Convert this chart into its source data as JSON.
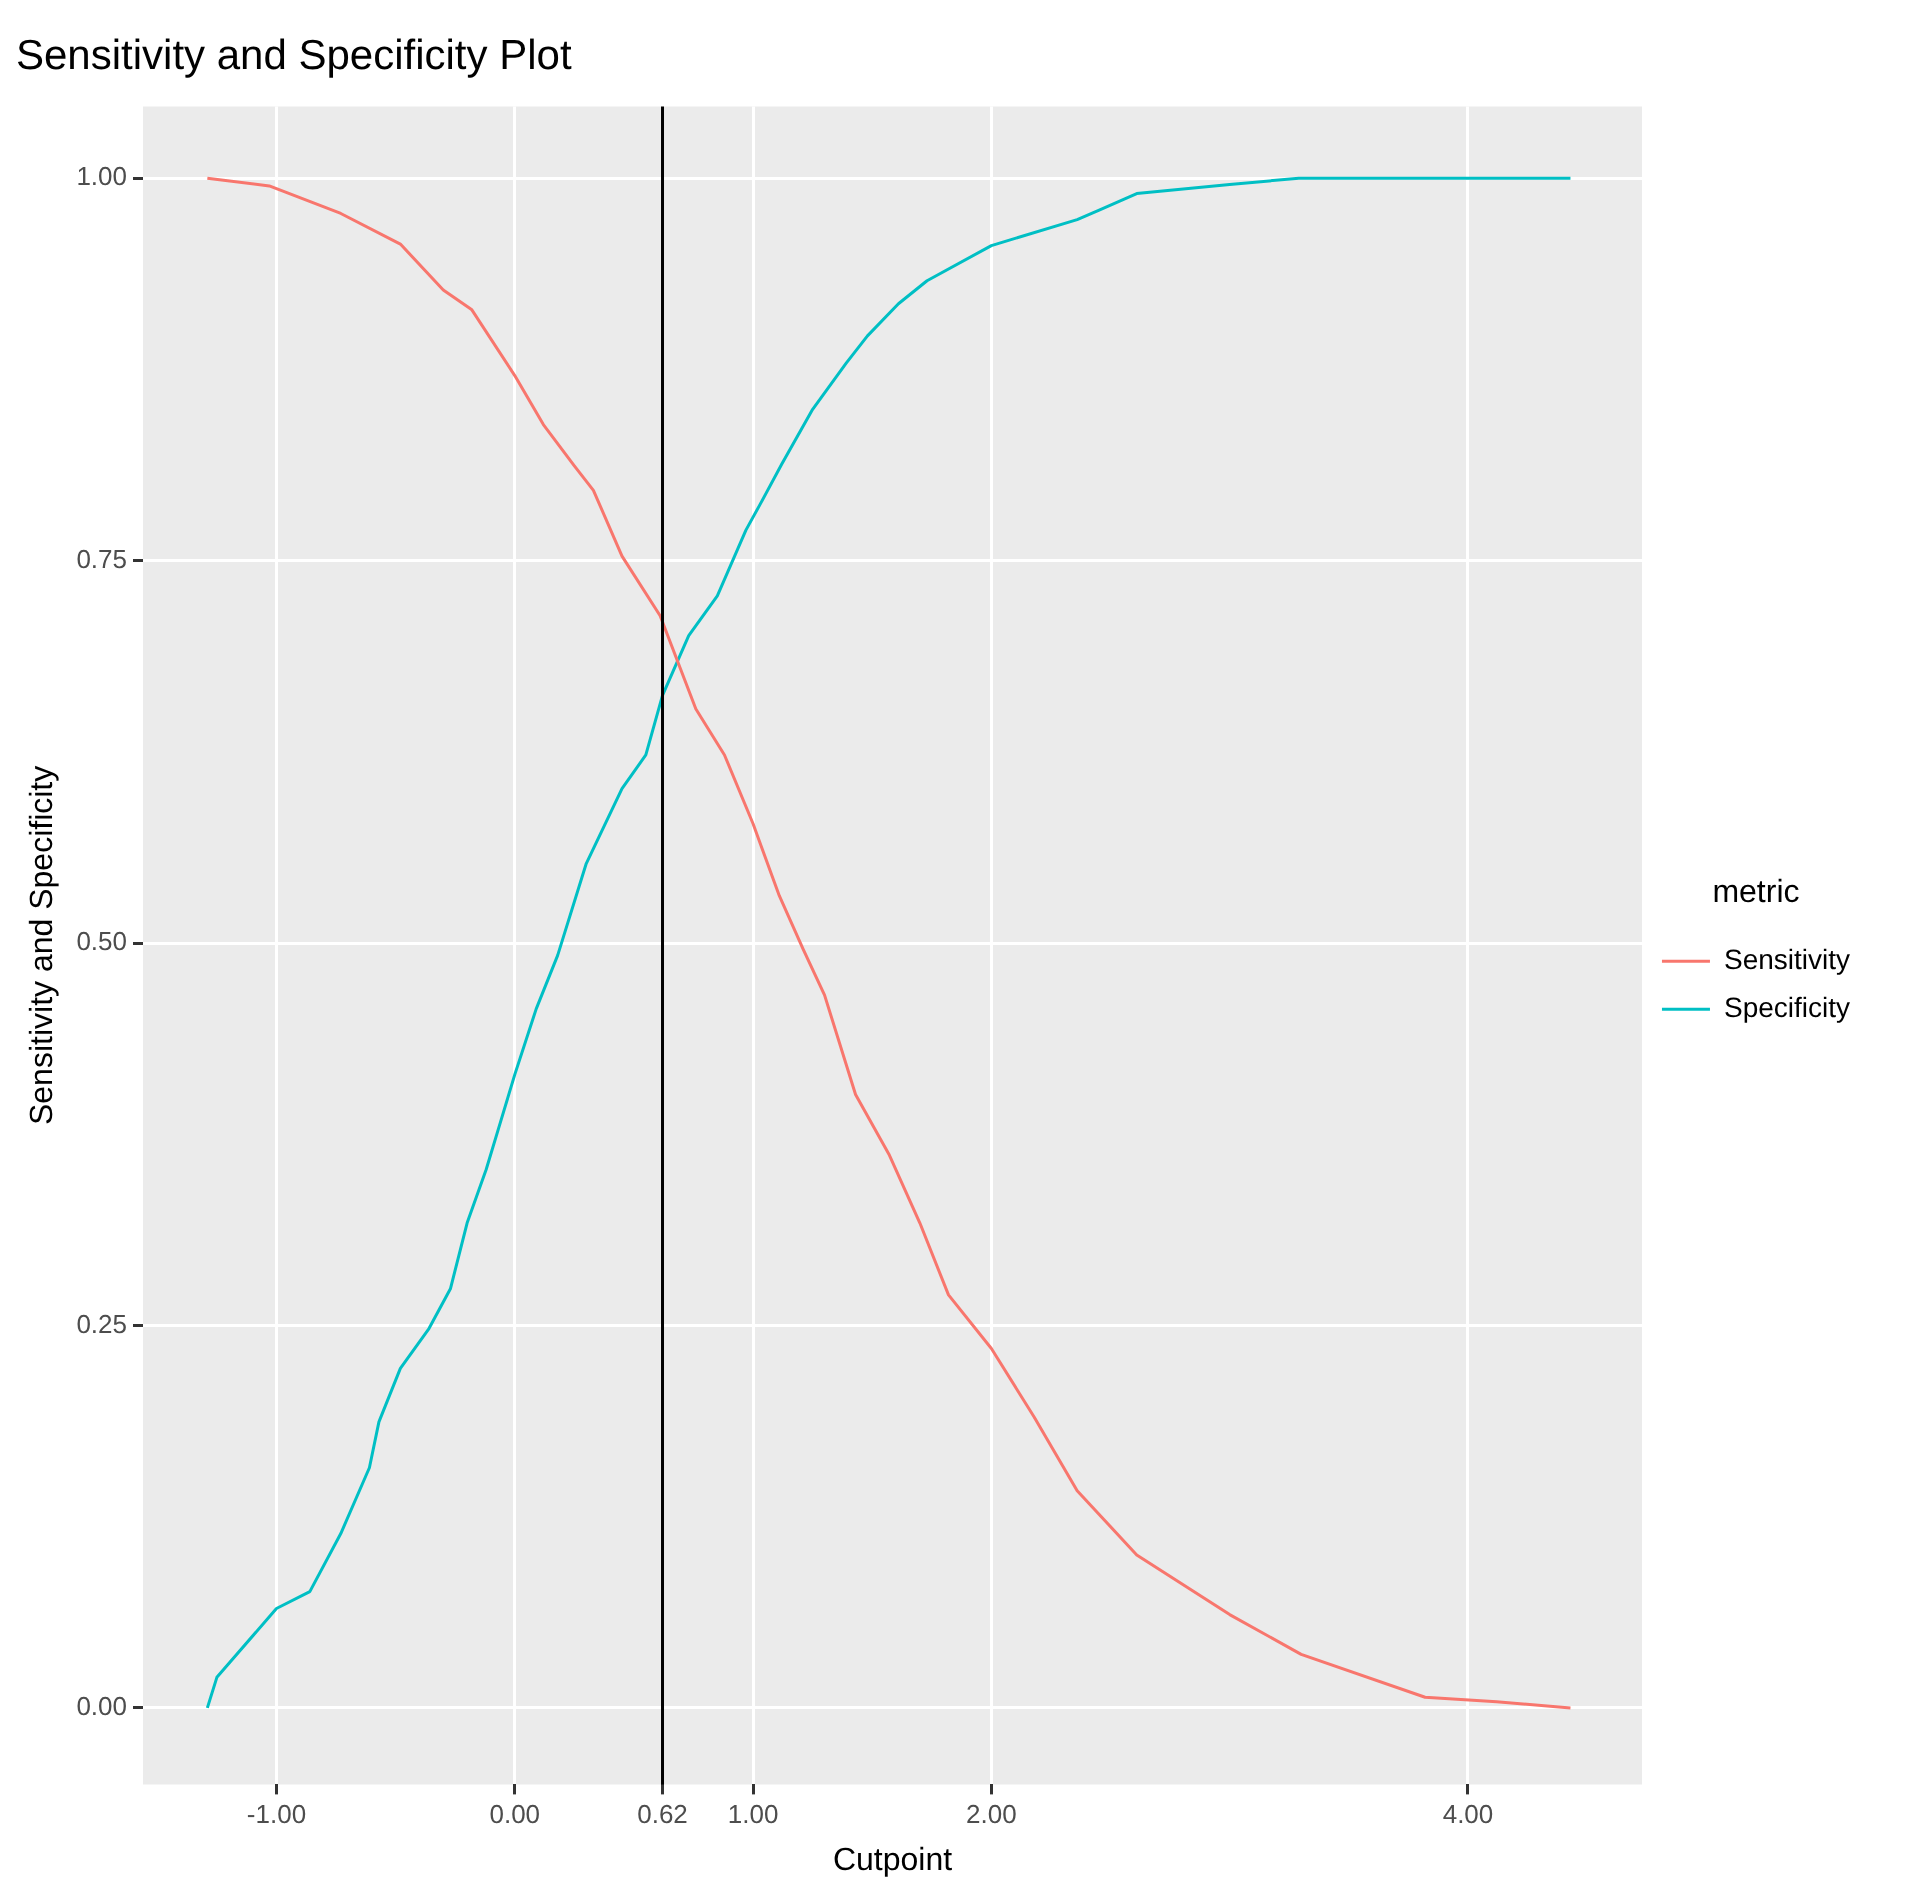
{
  "chart_data": {
    "type": "line",
    "title": "Sensitivity and Specificity Plot",
    "xlabel": "Cutpoint",
    "ylabel": "Sensitivity and Specificity",
    "legend_title": "metric",
    "legend": "right",
    "grid": true,
    "xlim": [
      -1.56,
      4.73
    ],
    "ylim": [
      -0.05,
      1.047
    ],
    "xticks": [
      {
        "value": -1,
        "label": "-1.00"
      },
      {
        "value": 0,
        "label": "0.00"
      },
      {
        "value": 0.62,
        "label": "0.62"
      },
      {
        "value": 1,
        "label": "1.00"
      },
      {
        "value": 2,
        "label": "2.00"
      },
      {
        "value": 4,
        "label": "4.00"
      }
    ],
    "yticks": [
      {
        "value": 0,
        "label": "0.00"
      },
      {
        "value": 0.25,
        "label": "0.25"
      },
      {
        "value": 0.5,
        "label": "0.50"
      },
      {
        "value": 0.75,
        "label": "0.75"
      },
      {
        "value": 1,
        "label": "1.00"
      }
    ],
    "ref_lines": [
      {
        "axis": "x",
        "value": 0.62,
        "color": "#000000"
      }
    ],
    "series": [
      {
        "name": "Sensitivity",
        "color": "#f8766d",
        "x": [
          -1.29,
          -1.03,
          -0.73,
          -0.48,
          -0.3,
          -0.18,
          0,
          0.12,
          0.25,
          0.33,
          0.45,
          0.61,
          0.76,
          0.88,
          1,
          1.11,
          1.21,
          1.3,
          1.43,
          1.57,
          1.7,
          1.82,
          2,
          2.18,
          2.36,
          2.61,
          3,
          3.3,
          3.82,
          4.12,
          4.43
        ],
        "values": [
          1,
          0.995,
          0.977,
          0.957,
          0.927,
          0.914,
          0.871,
          0.839,
          0.812,
          0.796,
          0.753,
          0.714,
          0.653,
          0.623,
          0.578,
          0.531,
          0.496,
          0.466,
          0.401,
          0.362,
          0.317,
          0.27,
          0.235,
          0.19,
          0.142,
          0.1,
          0.061,
          0.035,
          0.007,
          0.004,
          0
        ]
      },
      {
        "name": "Specificity",
        "color": "#00bfc4",
        "x": [
          -1.29,
          -1.25,
          -1,
          -0.86,
          -0.73,
          -0.61,
          -0.57,
          -0.48,
          -0.36,
          -0.27,
          -0.2,
          -0.12,
          -0.06,
          0,
          0.09,
          0.18,
          0.3,
          0.45,
          0.55,
          0.62,
          0.73,
          0.85,
          0.97,
          1.03,
          1.12,
          1.25,
          1.39,
          1.48,
          1.61,
          1.73,
          2,
          2.36,
          2.45,
          2.61,
          3,
          3.29,
          4.43
        ],
        "values": [
          0,
          0.02,
          0.065,
          0.076,
          0.114,
          0.157,
          0.187,
          0.222,
          0.248,
          0.274,
          0.317,
          0.352,
          0.383,
          0.414,
          0.457,
          0.492,
          0.552,
          0.601,
          0.623,
          0.662,
          0.701,
          0.727,
          0.77,
          0.787,
          0.813,
          0.849,
          0.879,
          0.897,
          0.918,
          0.933,
          0.956,
          0.973,
          0.979,
          0.99,
          0.996,
          1,
          1
        ]
      }
    ]
  }
}
